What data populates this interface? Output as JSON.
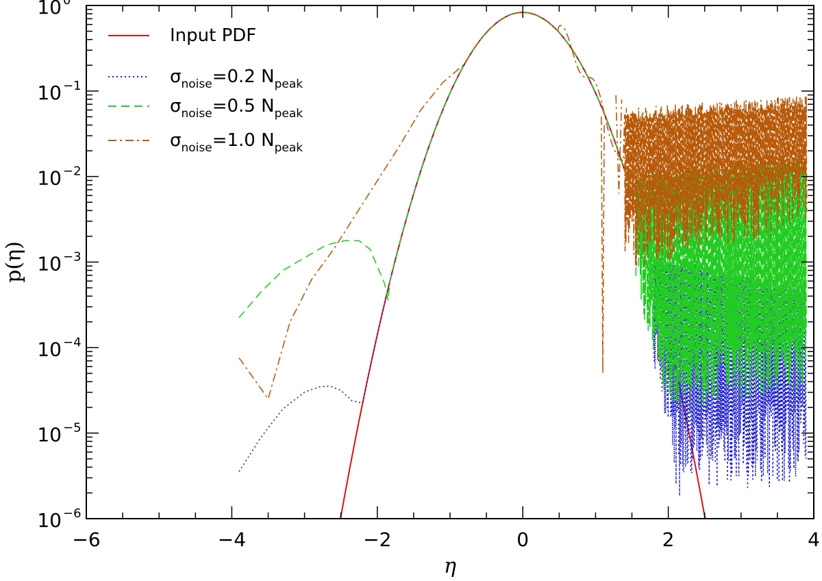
{
  "chart_data": {
    "type": "line",
    "title": "",
    "xlabel": "η",
    "ylabel": "p(η)",
    "xlim": [
      -6,
      4
    ],
    "ylim_log10": [
      -6,
      0
    ],
    "y_scale": "log",
    "x_ticks": [
      -6,
      -4,
      -2,
      0,
      2,
      4
    ],
    "x_tick_labels": [
      "−6",
      "−4",
      "−2",
      "0",
      "2",
      "4"
    ],
    "y_ticks": [
      {
        "base": "10",
        "exp": "0",
        "log10": 0
      },
      {
        "base": "10",
        "exp": "−1",
        "log10": -1
      },
      {
        "base": "10",
        "exp": "−2",
        "log10": -2
      },
      {
        "base": "10",
        "exp": "−3",
        "log10": -3
      },
      {
        "base": "10",
        "exp": "−4",
        "log10": -4
      },
      {
        "base": "10",
        "exp": "−5",
        "log10": -5
      },
      {
        "base": "10",
        "exp": "−6",
        "log10": -6
      }
    ],
    "legend_position": "top-left",
    "series": [
      {
        "name": "Input PDF",
        "legend_main": "Input PDF",
        "color": "#dd1111",
        "dash": "solid",
        "gauss_sigma": 0.48,
        "gauss_peak": 0.83,
        "x": [
          -3.0,
          3.0
        ]
      },
      {
        "name": "σnoise=0.2 Npeak",
        "legend_sigma": "σ",
        "legend_sub": "noise",
        "legend_mid": "=0.2 N",
        "legend_sub2": "peak",
        "color": "#1a1acc",
        "dash": "dotted",
        "left_x": [
          -3.9,
          -3.6,
          -3.3,
          -3.0,
          -2.8,
          -2.65,
          -2.5,
          -2.35,
          -2.2
        ],
        "left_log10": [
          -5.45,
          -5.05,
          -4.72,
          -4.52,
          -4.46,
          -4.45,
          -4.5,
          -4.62,
          -4.65
        ],
        "noise_start": 1.8,
        "noise_end": 3.9,
        "noise_top_log10": [
          -2.9,
          -3.3
        ],
        "noise_bottom_log10": [
          -4.4,
          -4.2
        ]
      },
      {
        "name": "σnoise=0.5 Npeak",
        "legend_sigma": "σ",
        "legend_sub": "noise",
        "legend_mid": "=0.5 N",
        "legend_sub2": "peak",
        "color": "#22cc22",
        "dash": "dashed",
        "left_x": [
          -3.9,
          -3.6,
          -3.3,
          -3.0,
          -2.7,
          -2.45,
          -2.25,
          -2.1,
          -2.0,
          -1.9,
          -1.85
        ],
        "left_log10": [
          -3.65,
          -3.35,
          -3.1,
          -2.95,
          -2.8,
          -2.75,
          -2.75,
          -2.85,
          -3.05,
          -3.25,
          -3.45
        ],
        "noise_start": 1.55,
        "noise_end": 3.9,
        "noise_top_log10": [
          -1.95,
          -1.75
        ],
        "noise_bottom_log10": [
          -3.8,
          -3.5
        ]
      },
      {
        "name": "σnoise=1.0 Npeak",
        "legend_sigma": "σ",
        "legend_sub": "noise",
        "legend_mid": "=1.0 N",
        "legend_sub2": "peak",
        "color": "#b85a0a",
        "dash": "dashdot",
        "left_x": [
          -3.9,
          -3.5,
          -3.2,
          -2.9,
          -2.6,
          -2.3,
          -2.0,
          -1.7,
          -1.4,
          -1.1
        ],
        "left_log10": [
          -4.12,
          -4.6,
          -3.7,
          -3.2,
          -2.85,
          -2.45,
          -2.05,
          -1.65,
          -1.22,
          -0.9
        ],
        "noise_start": 1.4,
        "noise_end": 3.9,
        "noise_top_log10": [
          -1.2,
          -1.05
        ],
        "noise_bottom_log10": [
          -2.1,
          -1.6
        ]
      }
    ]
  }
}
